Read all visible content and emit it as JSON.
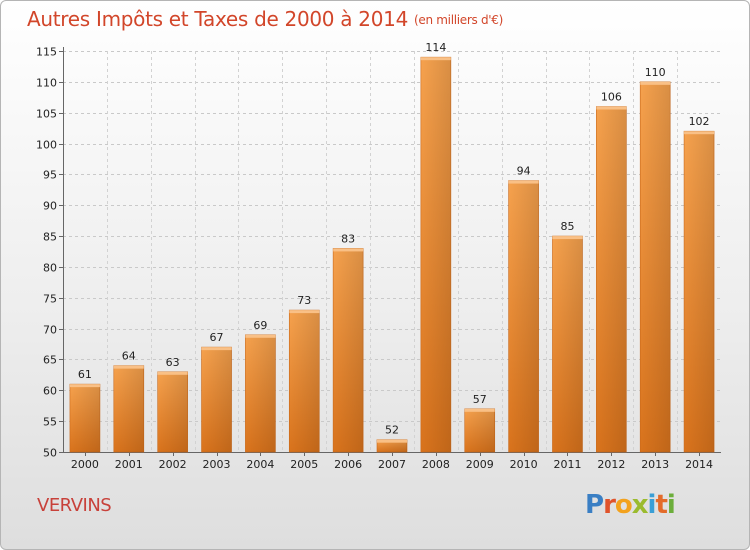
{
  "title": "Autres Impôts et Taxes de 2000 à 2014",
  "unit": "(en milliers d'€)",
  "city": "VERVINS",
  "logo": [
    "P",
    "r",
    "o",
    "x",
    "i",
    "t",
    "i"
  ],
  "chart_data": {
    "type": "bar",
    "title": "Autres Impôts et Taxes de 2000 à 2014",
    "subtitle": "(en milliers d'€)",
    "xlabel": "",
    "ylabel": "",
    "categories": [
      "2000",
      "2001",
      "2002",
      "2003",
      "2004",
      "2005",
      "2006",
      "2007",
      "2008",
      "2009",
      "2010",
      "2011",
      "2012",
      "2013",
      "2014"
    ],
    "values": [
      61,
      64,
      63,
      67,
      69,
      73,
      83,
      52,
      114,
      57,
      94,
      85,
      106,
      110,
      102
    ],
    "ylim": [
      50,
      115
    ],
    "yticks": [
      50,
      55,
      60,
      65,
      70,
      75,
      80,
      85,
      90,
      95,
      100,
      105,
      110,
      115
    ],
    "grid": true,
    "bar_color": "#f08a2a"
  }
}
